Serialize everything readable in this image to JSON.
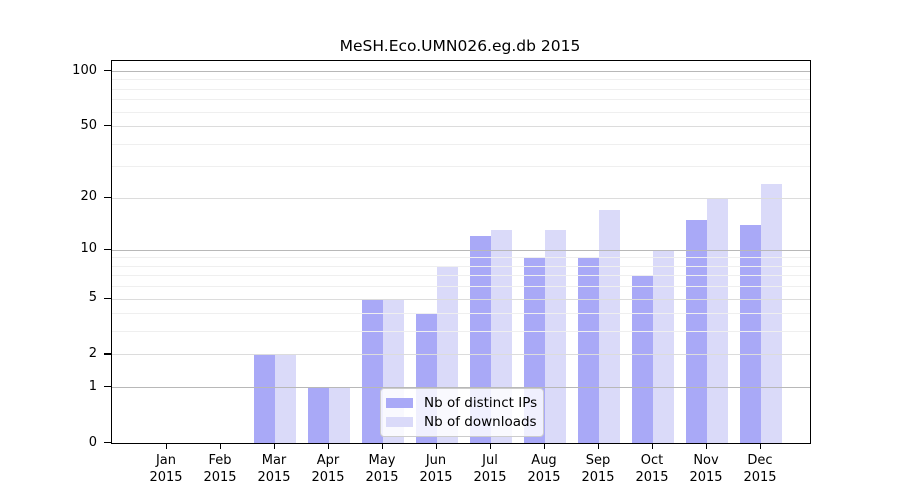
{
  "title": "MeSH.Eco.UMN026.eg.db 2015",
  "colors": {
    "bar_ips": "#a9a9f7",
    "bar_downloads": "#dadaf9",
    "grid_power10": "#b8b8b8",
    "grid_labeled": "#dcdcdc",
    "grid_minor": "#efefef",
    "axis": "#000000"
  },
  "legend": {
    "items": [
      {
        "label": "Nb of distinct IPs",
        "color_key": "bar_ips"
      },
      {
        "label": "Nb of downloads",
        "color_key": "bar_downloads"
      }
    ]
  },
  "chart_data": {
    "type": "bar",
    "title": "MeSH.Eco.UMN026.eg.db 2015",
    "categories": [
      "Jan 2015",
      "Feb 2015",
      "Mar 2015",
      "Apr 2015",
      "May 2015",
      "Jun 2015",
      "Jul 2015",
      "Aug 2015",
      "Sep 2015",
      "Oct 2015",
      "Nov 2015",
      "Dec 2015"
    ],
    "series": [
      {
        "name": "Nb of distinct IPs",
        "values": [
          0,
          0,
          2,
          1,
          5,
          4,
          12,
          9,
          9,
          7,
          15,
          14
        ]
      },
      {
        "name": "Nb of downloads",
        "values": [
          0,
          0,
          2,
          1,
          5,
          8,
          13,
          13,
          17,
          10,
          20,
          24
        ]
      }
    ],
    "xlabel": "",
    "ylabel": "",
    "yscale": "log1p",
    "ylim": [
      0,
      113
    ],
    "y_ticks": [
      0,
      1,
      2,
      5,
      10,
      20,
      50,
      100
    ],
    "y_minor_gridlines": [
      3,
      4,
      6,
      7,
      8,
      9,
      30,
      40,
      60,
      70,
      80,
      90
    ],
    "grid": true,
    "legend_position": "lower center"
  }
}
